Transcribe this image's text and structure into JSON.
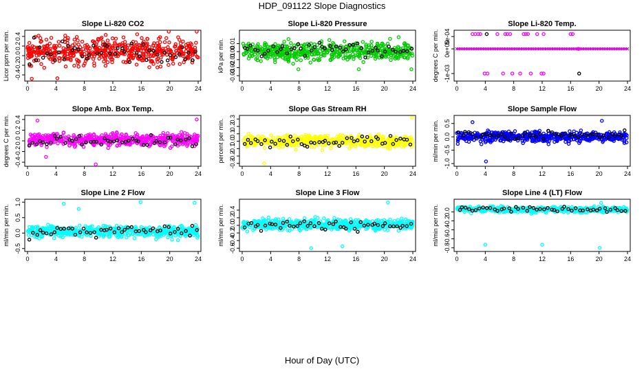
{
  "title": "HDP_091122  Slope Diagnostics",
  "xlabel": "Hour of Day (UTC)",
  "colors": {
    "highlight": "#000000"
  },
  "chart_data": [
    {
      "type": "scatter",
      "title": "Slope Li-820 CO2",
      "ylabel": "Licor ppm per min.",
      "color": "#ff0000",
      "xlim": [
        0,
        24
      ],
      "ylim": [
        -0.5,
        0.5
      ],
      "xticks": [
        "0",
        "4",
        "8",
        "12",
        "16",
        "20",
        "24"
      ],
      "yticks": [
        -0.4,
        -0.2,
        0.0,
        0.2,
        0.4
      ],
      "ytick_labels": [
        "-0.4",
        "-0.2",
        "0.0",
        "0.2",
        "0.4"
      ],
      "center": 0.1,
      "spread": 0.28,
      "outliers": [
        [
          23.8,
          0.5
        ],
        [
          0.6,
          -0.48
        ],
        [
          4.2,
          -0.47
        ]
      ],
      "highlight_center": 0.05
    },
    {
      "type": "scatter",
      "title": "Slope Li-820 Pressure",
      "ylabel": "kPa per min.",
      "color": "#00cc00",
      "xlim": [
        0,
        24
      ],
      "ylim": [
        -0.035,
        0.025
      ],
      "xticks": [
        "0",
        "4",
        "8",
        "12",
        "16",
        "20",
        "24"
      ],
      "yticks": [
        -0.03,
        -0.02,
        -0.01,
        0.0,
        0.01
      ],
      "ytick_labels": [
        "-0.03",
        "-0.02",
        "-0.01",
        "0.00",
        "0.01"
      ],
      "center": 0.0,
      "spread": 0.011,
      "outliers": [
        [
          7.9,
          -0.022
        ],
        [
          16.4,
          -0.022
        ],
        [
          23.8,
          -0.022
        ],
        [
          20.8,
          0.016
        ],
        [
          22.0,
          0.018
        ]
      ],
      "highlight_center": 0.002
    },
    {
      "type": "scatter",
      "title": "Slope Li-820 Temp.",
      "ylabel": "degrees C per min.",
      "color": "#ff00ff",
      "xlim": [
        0,
        24
      ],
      "ylim": [
        -0.00125,
        0.0007
      ],
      "xticks": [
        "0",
        "4",
        "8",
        "12",
        "16",
        "20",
        "24"
      ],
      "yticks": [
        -0.001,
        0.0,
        0.0005
      ],
      "ytick_labels": [
        "-1e-03",
        "0e+00",
        "5e-04"
      ],
      "mode": "discrete",
      "levels": [
        0.0006,
        0.0,
        -0.001
      ]
    },
    {
      "type": "scatter",
      "title": "Slope Amb. Box Temp.",
      "ylabel": "degrees C per min.",
      "color": "#ff00ff",
      "xlim": [
        0,
        24
      ],
      "ylim": [
        -0.45,
        0.45
      ],
      "xticks": [
        "0",
        "4",
        "8",
        "12",
        "16",
        "20",
        "24"
      ],
      "yticks": [
        -0.4,
        -0.2,
        0.0,
        0.2,
        0.4
      ],
      "ytick_labels": [
        "-0.4",
        "-0.2",
        "0.0",
        "0.2",
        "0.4"
      ],
      "center": 0.02,
      "spread": 0.11,
      "outliers": [
        [
          1.4,
          0.38
        ],
        [
          23.8,
          0.4
        ],
        [
          9.6,
          -0.44
        ],
        [
          2.6,
          -0.3
        ]
      ],
      "highlight_center": 0.0
    },
    {
      "type": "scatter",
      "title": "Slope Gas Stream RH",
      "ylabel": "percent per min.",
      "color": "#ffff00",
      "xlim": [
        0,
        24
      ],
      "ylim": [
        -0.32,
        0.33
      ],
      "xticks": [
        "0",
        "4",
        "8",
        "12",
        "16",
        "20",
        "24"
      ],
      "yticks": [
        -0.3,
        -0.2,
        -0.1,
        0.0,
        0.1,
        0.2,
        0.3
      ],
      "ytick_labels": [
        "-0.3",
        "-0.2",
        "-0.1",
        "0.0",
        "0.1",
        "0.2",
        "0.3"
      ],
      "center": 0.0,
      "spread": 0.08,
      "outliers": [
        [
          23.9,
          0.32
        ],
        [
          3.1,
          -0.3
        ]
      ],
      "highlight_center": 0.0
    },
    {
      "type": "scatter",
      "title": "Slope Sample Flow",
      "ylabel": "ml/min per min.",
      "color": "#0000ff",
      "xlim": [
        0,
        24
      ],
      "ylim": [
        -1.05,
        0.75
      ],
      "xticks": [
        "0",
        "4",
        "8",
        "12",
        "16",
        "20",
        "24"
      ],
      "yticks": [
        -1.0,
        -0.5,
        0.0,
        0.5
      ],
      "ytick_labels": [
        "-1.0",
        "-0.5",
        "0.0",
        "0.5"
      ],
      "center": 0.0,
      "spread": 0.19,
      "outliers": [
        [
          4.1,
          -0.92
        ],
        [
          20.4,
          0.6
        ],
        [
          2.2,
          0.55
        ]
      ],
      "highlight_center": 0.05
    },
    {
      "type": "scatter",
      "title": "Slope Line 2 Flow",
      "ylabel": "ml/min per min.",
      "color": "#00ffff",
      "xlim": [
        0,
        24
      ],
      "ylim": [
        -0.55,
        1.05
      ],
      "xticks": [
        "0",
        "4",
        "8",
        "12",
        "16",
        "20",
        "24"
      ],
      "yticks": [
        -0.5,
        0.0,
        0.5,
        1.0
      ],
      "ytick_labels": [
        "-0.5",
        "0.0",
        "0.5",
        "1.0"
      ],
      "center": 0.05,
      "spread": 0.18,
      "outliers": [
        [
          15.9,
          1.0
        ],
        [
          23.5,
          0.98
        ],
        [
          5.1,
          0.95
        ],
        [
          7.2,
          0.78
        ]
      ],
      "highlight_center": 0.05
    },
    {
      "type": "scatter",
      "title": "Slope Line 3 Flow",
      "ylabel": "ml/min per min.",
      "color": "#00ffff",
      "xlim": [
        0,
        24
      ],
      "ylim": [
        -0.65,
        0.65
      ],
      "xticks": [
        "0",
        "4",
        "8",
        "12",
        "16",
        "20",
        "24"
      ],
      "yticks": [
        -0.6,
        -0.4,
        -0.2,
        0.0,
        0.2,
        0.4
      ],
      "ytick_labels": [
        "-0.6",
        "-0.4",
        "-0.2",
        "0.0",
        "0.2",
        "0.4"
      ],
      "center": 0.02,
      "spread": 0.14,
      "outliers": [
        [
          20.5,
          0.6
        ],
        [
          9.7,
          -0.6
        ],
        [
          14.1,
          -0.55
        ]
      ],
      "highlight_center": 0.0
    },
    {
      "type": "scatter",
      "title": "Slope Line 4 (LT) Flow",
      "ylabel": "ml/min per min.",
      "color": "#00ffff",
      "xlim": [
        0,
        24
      ],
      "ylim": [
        -0.85,
        0.25
      ],
      "xticks": [
        "0",
        "4",
        "8",
        "12",
        "16",
        "20",
        "24"
      ],
      "yticks": [
        -0.8,
        -0.6,
        -0.4,
        -0.2,
        0.0
      ],
      "ytick_labels": [
        "-0.8",
        "-0.6",
        "-0.4",
        "-0.2",
        "0.0"
      ],
      "center": 0.05,
      "spread": 0.06,
      "outliers": [
        [
          4.0,
          -0.73
        ],
        [
          12.0,
          -0.73
        ],
        [
          20.1,
          -0.8
        ],
        [
          20.3,
          0.2
        ]
      ],
      "highlight_center": 0.05
    }
  ]
}
